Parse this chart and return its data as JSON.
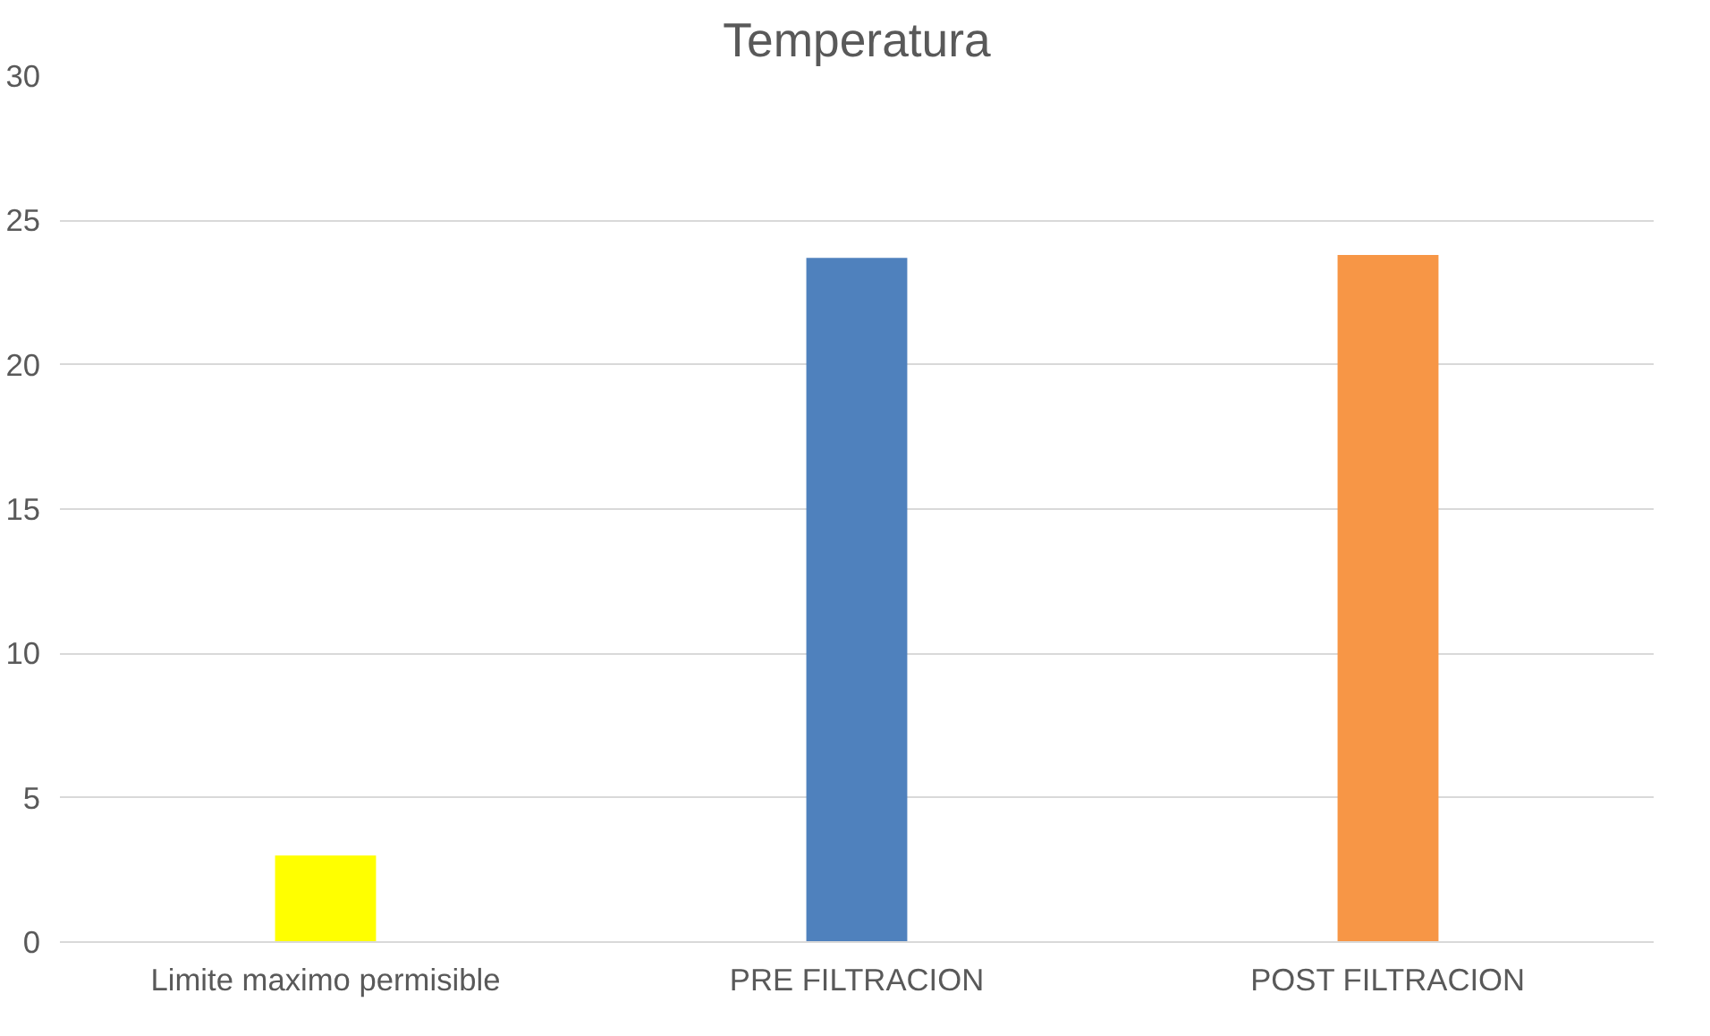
{
  "chart_data": {
    "type": "bar",
    "title": "Temperatura",
    "categories": [
      "Limite maximo permisible",
      "PRE FILTRACION",
      "POST FILTRACION"
    ],
    "values": [
      3,
      23.7,
      23.8
    ],
    "colors": [
      "#ffff00",
      "#4f81bd",
      "#f79646"
    ],
    "ylim": [
      0,
      30
    ],
    "yticks": [
      0,
      5,
      10,
      15,
      20,
      25,
      30
    ],
    "grid": "y"
  }
}
